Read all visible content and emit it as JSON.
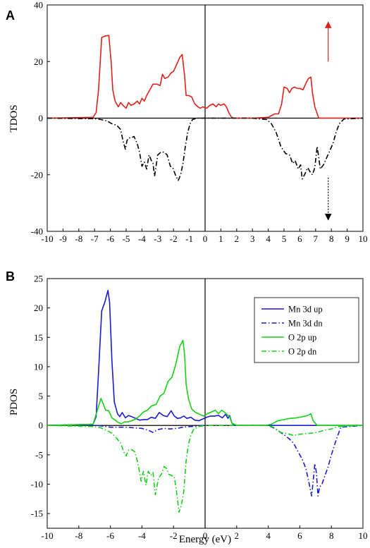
{
  "chart_data": [
    {
      "panel": "A",
      "type": "line",
      "title": "",
      "xlabel": "",
      "ylabel": "TDOS",
      "xlim": [
        -10,
        10
      ],
      "ylim": [
        -40,
        40
      ],
      "xticks": [
        -10,
        -9,
        -8,
        -7,
        -6,
        -5,
        -4,
        -3,
        -2,
        -1,
        0,
        1,
        2,
        3,
        4,
        5,
        6,
        7,
        8,
        9,
        10
      ],
      "yticks": [
        -40,
        -20,
        0,
        20,
        40
      ],
      "annotations": [
        {
          "kind": "arrow-up",
          "color": "#e0201a",
          "x": 7.8,
          "y_from": 20,
          "y_to": 33
        },
        {
          "kind": "arrow-down-dotted",
          "color": "#000000",
          "x": 7.8,
          "y_from": -21,
          "y_to": -35
        }
      ],
      "series": [
        {
          "color": "#e0201a",
          "style": "solid",
          "x": [
            -10,
            -7.1,
            -6.9,
            -6.75,
            -6.55,
            -6.35,
            -6.1,
            -5.95,
            -5.85,
            -5.7,
            -5.5,
            -5.35,
            -5.2,
            -5.0,
            -4.85,
            -4.7,
            -4.5,
            -4.3,
            -4.15,
            -4.0,
            -3.85,
            -3.7,
            -3.5,
            -3.3,
            -3.05,
            -2.85,
            -2.7,
            -2.55,
            -2.35,
            -2.15,
            -2.0,
            -1.8,
            -1.6,
            -1.45,
            -1.3,
            -1.2,
            -1.05,
            -0.85,
            -0.65,
            -0.45,
            -0.3,
            -0.15,
            0.1,
            0.3,
            0.5,
            0.7,
            0.85,
            1.0,
            1.2,
            1.35,
            1.5,
            1.65,
            1.8,
            2.0,
            3.0,
            4.0,
            4.4,
            4.65,
            4.85,
            5.0,
            5.2,
            5.35,
            5.5,
            5.65,
            5.85,
            6.0,
            6.2,
            6.4,
            6.55,
            6.7,
            6.8,
            6.95,
            7.2,
            10
          ],
          "y": [
            0,
            0.3,
            2,
            10,
            28.5,
            29,
            29.2,
            20,
            10,
            6,
            4,
            5.5,
            4.5,
            3.5,
            5.5,
            4.5,
            5,
            6,
            5,
            7,
            6,
            8,
            10,
            12,
            12,
            11.5,
            15.5,
            14,
            14.5,
            16,
            16.5,
            19,
            21.5,
            22.5,
            15,
            8,
            8,
            7.5,
            5,
            4,
            3.5,
            4,
            3.5,
            4.5,
            5,
            4,
            5,
            4.5,
            5,
            4,
            2,
            0.5,
            0,
            0,
            0,
            0.3,
            1.5,
            1.5,
            5,
            11,
            10.5,
            9,
            10.5,
            11,
            10.5,
            10.5,
            10,
            12.5,
            14,
            14.5,
            9,
            4,
            0,
            0
          ]
        },
        {
          "color": "#000000",
          "style": "dash-dot",
          "x": [
            -10,
            -7.0,
            -6.6,
            -6.2,
            -5.9,
            -5.6,
            -5.35,
            -5.2,
            -5.05,
            -4.95,
            -4.85,
            -4.7,
            -4.5,
            -4.3,
            -4.15,
            -4.0,
            -3.85,
            -3.7,
            -3.55,
            -3.4,
            -3.3,
            -3.2,
            -3.0,
            -2.8,
            -2.6,
            -2.4,
            -2.2,
            -2.05,
            -1.85,
            -1.7,
            -1.55,
            -1.4,
            -1.25,
            -1.1,
            -0.95,
            -0.8,
            -0.5,
            0,
            3.0,
            3.9,
            4.2,
            4.5,
            4.8,
            5.1,
            5.35,
            5.55,
            5.7,
            5.9,
            6.05,
            6.15,
            6.3,
            6.5,
            6.65,
            6.8,
            6.95,
            7.1,
            7.3,
            7.5,
            7.7,
            7.9,
            8.1,
            8.3,
            8.5,
            8.8,
            10
          ],
          "y": [
            0,
            -0.2,
            -0.5,
            -1,
            -2,
            -2.5,
            -4,
            -8,
            -11,
            -8,
            -7,
            -7,
            -6.5,
            -9,
            -12,
            -17,
            -15.5,
            -18,
            -13,
            -15,
            -16,
            -20.5,
            -13,
            -12,
            -12,
            -13,
            -17,
            -17.5,
            -20.5,
            -22,
            -20,
            -16,
            -10,
            -5,
            -2,
            -0.5,
            0,
            0,
            0,
            -0.5,
            -2,
            -5,
            -10,
            -12.5,
            -13,
            -16,
            -15,
            -18,
            -16.5,
            -21.5,
            -20,
            -17.5,
            -19,
            -20,
            -17.5,
            -10,
            -18,
            -16.5,
            -14,
            -11.5,
            -9,
            -5,
            -2,
            -0.3,
            0
          ]
        }
      ]
    },
    {
      "panel": "B",
      "type": "line",
      "title": "",
      "xlabel": "Energy (eV)",
      "ylabel": "PDOS",
      "xlim": [
        -10,
        10
      ],
      "ylim": [
        -17.5,
        25
      ],
      "xticks": [
        -10,
        -8,
        -6,
        -4,
        -2,
        0,
        2,
        4,
        6,
        8,
        10
      ],
      "yticks": [
        -15,
        -10,
        -5,
        0,
        5,
        10,
        15,
        20,
        25
      ],
      "legend": "top-right",
      "series": [
        {
          "name": "Mn 3d up",
          "color": "#1a1ad0",
          "style": "solid",
          "x": [
            -10,
            -7.1,
            -6.9,
            -6.75,
            -6.55,
            -6.35,
            -6.15,
            -6.05,
            -5.9,
            -5.75,
            -5.55,
            -5.4,
            -5.25,
            -5.05,
            -4.85,
            -4.65,
            -4.4,
            -4.15,
            -3.9,
            -3.65,
            -3.4,
            -3.15,
            -2.9,
            -2.65,
            -2.4,
            -2.15,
            -1.95,
            -1.75,
            -1.55,
            -1.35,
            -1.15,
            -0.9,
            -0.65,
            -0.4,
            -0.15,
            0.1,
            0.35,
            0.6,
            0.85,
            1.1,
            1.3,
            1.45,
            1.55,
            1.7,
            1.85,
            2.2,
            10
          ],
          "y": [
            0,
            0.2,
            1.5,
            9,
            19.5,
            21,
            23,
            21,
            11,
            4,
            2,
            1.5,
            2.2,
            1.3,
            1.7,
            1.5,
            1.2,
            0.9,
            1.0,
            1.0,
            1.4,
            1.2,
            2.2,
            1.7,
            1.5,
            2.5,
            1.6,
            1.2,
            1.3,
            1.6,
            1.2,
            1.4,
            0.9,
            0.8,
            1.1,
            1.4,
            1.6,
            1.6,
            1.7,
            1.3,
            1.9,
            1.2,
            1.7,
            0.4,
            0,
            0,
            0
          ]
        },
        {
          "name": "Mn 3d dn",
          "color": "#1a1ad0",
          "style": "dash-dot",
          "x": [
            -10,
            -6.9,
            -6.5,
            -6.0,
            -5.5,
            -5.0,
            -4.5,
            -4.0,
            -3.6,
            -3.3,
            -3.0,
            -2.6,
            -2.2,
            -1.8,
            -1.4,
            -1.0,
            -0.5,
            0,
            4.0,
            4.4,
            4.9,
            5.3,
            5.6,
            5.8,
            6.0,
            6.2,
            6.4,
            6.6,
            6.75,
            6.85,
            6.95,
            7.05,
            7.15,
            7.25,
            7.4,
            7.6,
            7.8,
            8.0,
            8.3,
            8.6,
            10
          ],
          "y": [
            0,
            0,
            -0.1,
            -0.3,
            -0.3,
            -0.3,
            -0.4,
            -0.5,
            -0.8,
            -1.2,
            -0.7,
            -0.5,
            -0.6,
            -0.5,
            -0.3,
            -0.2,
            -0.1,
            0,
            0,
            -0.5,
            -1.4,
            -2.2,
            -3,
            -4,
            -5,
            -6,
            -7.5,
            -10,
            -12,
            -9.5,
            -6.5,
            -8,
            -12,
            -10.5,
            -10,
            -8.5,
            -7,
            -5,
            -2.5,
            -0.3,
            0
          ]
        },
        {
          "name": "O   2p up",
          "color": "#17d017",
          "style": "solid",
          "x": [
            -10,
            -7.1,
            -6.8,
            -6.6,
            -6.45,
            -6.3,
            -6.1,
            -5.9,
            -5.7,
            -5.5,
            -5.3,
            -5.1,
            -4.9,
            -4.65,
            -4.4,
            -4.15,
            -3.9,
            -3.65,
            -3.4,
            -3.1,
            -2.85,
            -2.6,
            -2.35,
            -2.1,
            -1.85,
            -1.6,
            -1.4,
            -1.3,
            -1.2,
            -1.05,
            -0.85,
            -0.6,
            -0.35,
            -0.1,
            0.15,
            0.4,
            0.65,
            0.85,
            1.05,
            1.25,
            1.4,
            1.55,
            1.7,
            2.0,
            3.8,
            4.2,
            4.6,
            5.0,
            5.4,
            5.8,
            6.2,
            6.5,
            6.7,
            6.85,
            7.1,
            10
          ],
          "y": [
            0,
            0.2,
            2.8,
            4.6,
            3.7,
            2.6,
            2.5,
            1.3,
            0.9,
            0.5,
            0.3,
            0.6,
            0.6,
            0.8,
            1.1,
            1.6,
            2.3,
            2.6,
            3.3,
            3.6,
            5.0,
            5.5,
            7.5,
            8.2,
            10.5,
            13.5,
            14.5,
            12,
            7,
            4.5,
            2.8,
            2.2,
            1.9,
            1.6,
            2.0,
            2.3,
            2.6,
            2.0,
            2.6,
            2.2,
            1.8,
            1.5,
            0.4,
            0,
            0,
            0.2,
            0.8,
            1.0,
            1.2,
            1.3,
            1.5,
            1.7,
            2.0,
            0.8,
            0,
            0
          ]
        },
        {
          "name": "O   2p dn",
          "color": "#17d017",
          "style": "dash-dot",
          "x": [
            -10,
            -7.0,
            -6.6,
            -6.2,
            -5.9,
            -5.6,
            -5.35,
            -5.15,
            -5.0,
            -4.85,
            -4.65,
            -4.45,
            -4.25,
            -4.05,
            -3.9,
            -3.75,
            -3.6,
            -3.45,
            -3.3,
            -3.15,
            -2.95,
            -2.75,
            -2.6,
            -2.45,
            -2.3,
            -2.15,
            -1.95,
            -1.8,
            -1.65,
            -1.5,
            -1.35,
            -1.2,
            -1.05,
            -0.9,
            -0.7,
            -0.4,
            0,
            4.0,
            4.4,
            4.8,
            5.2,
            5.6,
            6.0,
            6.4,
            6.8,
            7.2,
            7.6,
            8.0,
            8.4,
            10
          ],
          "y": [
            0,
            -0.2,
            -0.4,
            -0.9,
            -1.3,
            -2.2,
            -3.0,
            -4.5,
            -5.2,
            -4.2,
            -4.1,
            -4.5,
            -6.5,
            -9.5,
            -7.8,
            -10.2,
            -7.8,
            -8.5,
            -8.0,
            -11.8,
            -9,
            -8.2,
            -7,
            -7.3,
            -8.3,
            -8.5,
            -8.7,
            -11.5,
            -14.8,
            -13.5,
            -11.2,
            -6,
            -3.2,
            -1.6,
            -0.6,
            -0.2,
            0,
            0,
            -0.4,
            -1.2,
            -1.4,
            -1.7,
            -1.5,
            -1.4,
            -1.3,
            -1.1,
            -0.8,
            -0.6,
            -0.2,
            0
          ]
        }
      ]
    }
  ]
}
